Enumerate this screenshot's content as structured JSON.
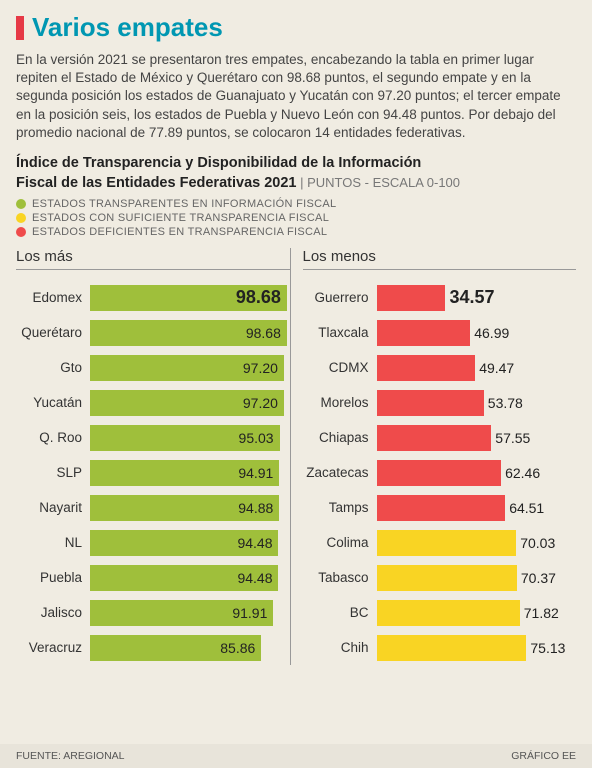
{
  "title": "Varios empates",
  "intro": "En la versión 2021 se presentaron tres empates, encabezando la tabla en primer lugar repiten el Estado de México y Querétaro con 98.68 puntos, el segundo empate y en la segunda posición los estados de Guanajuato y Yucatán con 97.20 puntos; el tercer empate en la posición seis, los estados de Puebla y Nuevo León con 94.48 puntos. Por debajo del promedio nacional de 77.89 puntos, se colocaron 14 entidades federativas.",
  "chart_title_l1": "Índice de Transparencia y Disponibilidad de la Información",
  "chart_title_l2": "Fiscal de las Entidades Federativas 2021",
  "chart_subtitle": " | PUNTOS - ESCALA 0-100",
  "colors": {
    "green": "#9fbf3b",
    "yellow": "#f9d423",
    "red": "#ef4b4b",
    "title": "#0097b2",
    "marker": "#e63946",
    "bg": "#f0ece2"
  },
  "legend": [
    {
      "color": "#9fbf3b",
      "label": "ESTADOS TRANSPARENTES EN INFORMACIÓN FISCAL"
    },
    {
      "color": "#f9d423",
      "label": "ESTADOS CON SUFICIENTE TRANSPARENCIA FISCAL"
    },
    {
      "color": "#ef4b4b",
      "label": "ESTADOS DEFICIENTES EN TRANSPARENCIA FISCAL"
    }
  ],
  "scale_max": 100,
  "left": {
    "header": "Los más",
    "rows": [
      {
        "label": "Edomex",
        "value": 98.68,
        "display": "98.68",
        "color": "#9fbf3b",
        "bold": true
      },
      {
        "label": "Querétaro",
        "value": 98.68,
        "display": "98.68",
        "color": "#9fbf3b",
        "bold": false
      },
      {
        "label": "Gto",
        "value": 97.2,
        "display": "97.20",
        "color": "#9fbf3b",
        "bold": false
      },
      {
        "label": "Yucatán",
        "value": 97.2,
        "display": "97.20",
        "color": "#9fbf3b",
        "bold": false
      },
      {
        "label": "Q. Roo",
        "value": 95.03,
        "display": "95.03",
        "color": "#9fbf3b",
        "bold": false
      },
      {
        "label": "SLP",
        "value": 94.91,
        "display": "94.91",
        "color": "#9fbf3b",
        "bold": false
      },
      {
        "label": "Nayarit",
        "value": 94.88,
        "display": "94.88",
        "color": "#9fbf3b",
        "bold": false
      },
      {
        "label": "NL",
        "value": 94.48,
        "display": "94.48",
        "color": "#9fbf3b",
        "bold": false
      },
      {
        "label": "Puebla",
        "value": 94.48,
        "display": "94.48",
        "color": "#9fbf3b",
        "bold": false
      },
      {
        "label": "Jalisco",
        "value": 91.91,
        "display": "91.91",
        "color": "#9fbf3b",
        "bold": false
      },
      {
        "label": "Veracruz",
        "value": 85.86,
        "display": "85.86",
        "color": "#9fbf3b",
        "bold": false
      }
    ]
  },
  "right": {
    "header": "Los menos",
    "rows": [
      {
        "label": "Guerrero",
        "value": 34.57,
        "display": "34.57",
        "color": "#ef4b4b",
        "bold": true
      },
      {
        "label": "Tlaxcala",
        "value": 46.99,
        "display": "46.99",
        "color": "#ef4b4b",
        "bold": false
      },
      {
        "label": "CDMX",
        "value": 49.47,
        "display": "49.47",
        "color": "#ef4b4b",
        "bold": false
      },
      {
        "label": "Morelos",
        "value": 53.78,
        "display": "53.78",
        "color": "#ef4b4b",
        "bold": false
      },
      {
        "label": "Chiapas",
        "value": 57.55,
        "display": "57.55",
        "color": "#ef4b4b",
        "bold": false
      },
      {
        "label": "Zacatecas",
        "value": 62.46,
        "display": "62.46",
        "color": "#ef4b4b",
        "bold": false
      },
      {
        "label": "Tamps",
        "value": 64.51,
        "display": "64.51",
        "color": "#ef4b4b",
        "bold": false
      },
      {
        "label": "Colima",
        "value": 70.03,
        "display": "70.03",
        "color": "#f9d423",
        "bold": false
      },
      {
        "label": "Tabasco",
        "value": 70.37,
        "display": "70.37",
        "color": "#f9d423",
        "bold": false
      },
      {
        "label": "BC",
        "value": 71.82,
        "display": "71.82",
        "color": "#f9d423",
        "bold": false
      },
      {
        "label": "Chih",
        "value": 75.13,
        "display": "75.13",
        "color": "#f9d423",
        "bold": false
      }
    ]
  },
  "footer": {
    "source": "FUENTE: AREGIONAL",
    "credit": "GRÁFICO EE"
  }
}
